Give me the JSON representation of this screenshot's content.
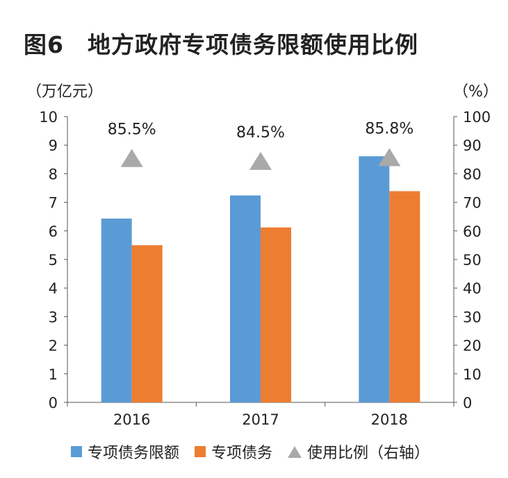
{
  "chart_data": {
    "type": "bar",
    "title": "图6　地方政府专项债务限额使用比例",
    "y_left_unit": "（万亿元）",
    "y_right_unit": "（%）",
    "categories": [
      "2016",
      "2017",
      "2018"
    ],
    "series": [
      {
        "name": "专项债务限额",
        "type": "bar",
        "axis": "left",
        "color": "#5b9bd5",
        "values": [
          6.43,
          7.24,
          8.61
        ]
      },
      {
        "name": "专项债务",
        "type": "bar",
        "axis": "left",
        "color": "#ed7d31",
        "values": [
          5.5,
          6.12,
          7.39
        ]
      },
      {
        "name": "使用比例（右轴）",
        "type": "scatter",
        "marker": "triangle",
        "axis": "right",
        "color": "#a9a9a9",
        "values": [
          85.5,
          84.5,
          85.8
        ],
        "labels": [
          "85.5%",
          "84.5%",
          "85.8%"
        ]
      }
    ],
    "y_left": {
      "min": 0,
      "max": 10,
      "step": 1
    },
    "y_right": {
      "min": 0,
      "max": 100,
      "step": 10
    },
    "grid": false,
    "legend_position": "bottom"
  }
}
